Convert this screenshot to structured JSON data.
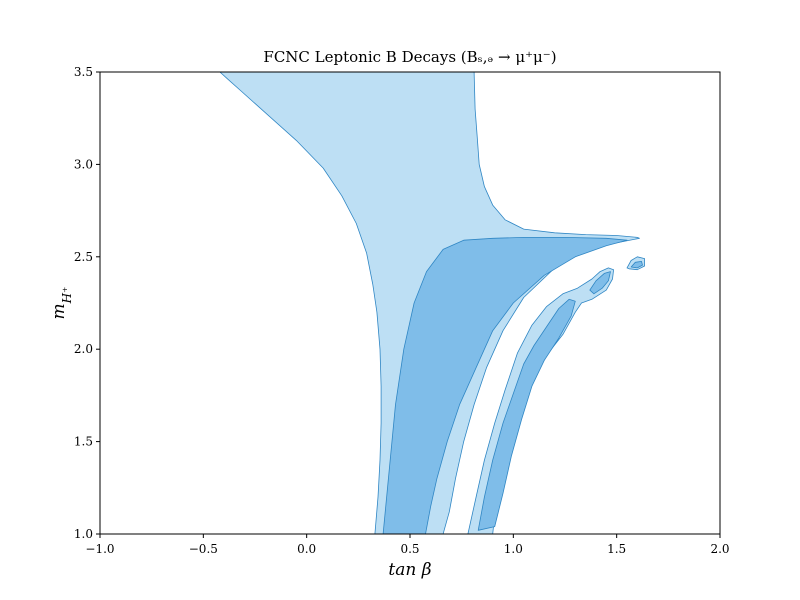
{
  "chart_data": {
    "type": "area",
    "title": "FCNC Leptonic B Decays (Bₛ,ₔ → μ⁺μ⁻)",
    "xlabel": "tan β",
    "ylabel": "m_{H⁺}",
    "xlim": [
      -1.0,
      2.0
    ],
    "ylim": [
      1.0,
      3.5
    ],
    "x_ticks": [
      "−1.0",
      "−0.5",
      "0.0",
      "0.5",
      "1.0",
      "1.5",
      "2.0"
    ],
    "y_ticks": [
      "1.0",
      "1.5",
      "2.0",
      "2.5",
      "3.0",
      "3.5"
    ],
    "grid": false,
    "colors": {
      "light": "#bddff4",
      "dark": "#7fbde9",
      "edge": "#2f86c4"
    },
    "regions": [
      {
        "level": "light",
        "points": [
          [
            -0.42,
            3.5
          ],
          [
            -0.38,
            3.46
          ],
          [
            -0.32,
            3.4
          ],
          [
            -0.2,
            3.28
          ],
          [
            -0.05,
            3.13
          ],
          [
            0.08,
            2.98
          ],
          [
            0.17,
            2.83
          ],
          [
            0.24,
            2.68
          ],
          [
            0.29,
            2.52
          ],
          [
            0.32,
            2.35
          ],
          [
            0.34,
            2.2
          ],
          [
            0.355,
            2.0
          ],
          [
            0.36,
            1.8
          ],
          [
            0.36,
            1.6
          ],
          [
            0.355,
            1.4
          ],
          [
            0.345,
            1.2
          ],
          [
            0.33,
            1.0
          ],
          [
            0.66,
            1.0
          ],
          [
            0.69,
            1.12
          ],
          [
            0.72,
            1.3
          ],
          [
            0.76,
            1.5
          ],
          [
            0.81,
            1.7
          ],
          [
            0.87,
            1.9
          ],
          [
            0.95,
            2.1
          ],
          [
            1.05,
            2.28
          ],
          [
            1.2,
            2.44
          ],
          [
            1.38,
            2.55
          ],
          [
            1.52,
            2.58
          ],
          [
            1.61,
            2.6
          ],
          [
            1.6,
            2.605
          ],
          [
            1.5,
            2.615
          ],
          [
            1.35,
            2.62
          ],
          [
            1.2,
            2.63
          ],
          [
            1.05,
            2.65
          ],
          [
            0.96,
            2.7
          ],
          [
            0.9,
            2.78
          ],
          [
            0.86,
            2.88
          ],
          [
            0.835,
            3.0
          ],
          [
            0.825,
            3.15
          ],
          [
            0.815,
            3.3
          ],
          [
            0.81,
            3.5
          ]
        ]
      },
      {
        "level": "dark",
        "points": [
          [
            0.37,
            1.0
          ],
          [
            0.4,
            1.35
          ],
          [
            0.43,
            1.7
          ],
          [
            0.47,
            2.0
          ],
          [
            0.52,
            2.25
          ],
          [
            0.58,
            2.42
          ],
          [
            0.66,
            2.54
          ],
          [
            0.76,
            2.59
          ],
          [
            0.9,
            2.6
          ],
          [
            1.05,
            2.605
          ],
          [
            1.25,
            2.605
          ],
          [
            1.45,
            2.6
          ],
          [
            1.55,
            2.59
          ],
          [
            1.45,
            2.56
          ],
          [
            1.3,
            2.5
          ],
          [
            1.15,
            2.4
          ],
          [
            1.0,
            2.25
          ],
          [
            0.9,
            2.1
          ],
          [
            0.82,
            1.9
          ],
          [
            0.74,
            1.7
          ],
          [
            0.68,
            1.5
          ],
          [
            0.63,
            1.3
          ],
          [
            0.6,
            1.15
          ],
          [
            0.575,
            1.0
          ]
        ]
      },
      {
        "level": "light",
        "points": [
          [
            0.78,
            1.0
          ],
          [
            0.82,
            1.2
          ],
          [
            0.86,
            1.4
          ],
          [
            0.91,
            1.6
          ],
          [
            0.96,
            1.78
          ],
          [
            1.02,
            1.98
          ],
          [
            1.09,
            2.13
          ],
          [
            1.16,
            2.23
          ],
          [
            1.24,
            2.3
          ],
          [
            1.31,
            2.33
          ],
          [
            1.38,
            2.38
          ],
          [
            1.42,
            2.42
          ],
          [
            1.46,
            2.44
          ],
          [
            1.485,
            2.43
          ],
          [
            1.48,
            2.38
          ],
          [
            1.45,
            2.32
          ],
          [
            1.38,
            2.27
          ],
          [
            1.33,
            2.25
          ],
          [
            1.3,
            2.2
          ],
          [
            1.24,
            2.08
          ],
          [
            1.17,
            1.98
          ],
          [
            1.1,
            1.85
          ],
          [
            1.04,
            1.68
          ],
          [
            0.99,
            1.5
          ],
          [
            0.95,
            1.3
          ],
          [
            0.91,
            1.1
          ],
          [
            0.9,
            1.0
          ]
        ]
      },
      {
        "level": "dark",
        "points": [
          [
            0.83,
            1.02
          ],
          [
            0.86,
            1.2
          ],
          [
            0.9,
            1.4
          ],
          [
            0.95,
            1.6
          ],
          [
            1.0,
            1.76
          ],
          [
            1.05,
            1.92
          ],
          [
            1.1,
            2.02
          ],
          [
            1.16,
            2.12
          ],
          [
            1.22,
            2.22
          ],
          [
            1.27,
            2.27
          ],
          [
            1.3,
            2.26
          ],
          [
            1.28,
            2.18
          ],
          [
            1.22,
            2.06
          ],
          [
            1.15,
            1.94
          ],
          [
            1.09,
            1.8
          ],
          [
            1.04,
            1.62
          ],
          [
            0.99,
            1.42
          ],
          [
            0.95,
            1.22
          ],
          [
            0.91,
            1.04
          ]
        ]
      },
      {
        "level": "dark",
        "points": [
          [
            1.37,
            2.32
          ],
          [
            1.4,
            2.37
          ],
          [
            1.44,
            2.41
          ],
          [
            1.47,
            2.42
          ],
          [
            1.46,
            2.37
          ],
          [
            1.43,
            2.33
          ],
          [
            1.39,
            2.3
          ]
        ]
      },
      {
        "level": "light",
        "points": [
          [
            1.55,
            2.44
          ],
          [
            1.57,
            2.48
          ],
          [
            1.6,
            2.5
          ],
          [
            1.635,
            2.49
          ],
          [
            1.635,
            2.45
          ],
          [
            1.6,
            2.43
          ],
          [
            1.56,
            2.435
          ]
        ]
      },
      {
        "level": "dark",
        "points": [
          [
            1.57,
            2.445
          ],
          [
            1.59,
            2.47
          ],
          [
            1.62,
            2.475
          ],
          [
            1.625,
            2.455
          ],
          [
            1.6,
            2.44
          ]
        ]
      }
    ]
  }
}
